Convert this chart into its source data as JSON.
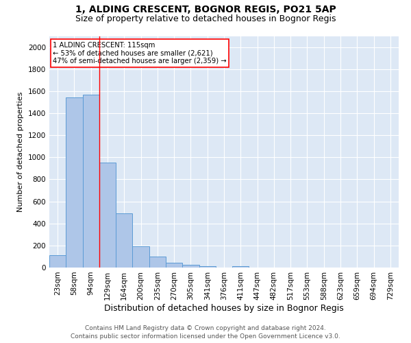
{
  "title": "1, ALDING CRESCENT, BOGNOR REGIS, PO21 5AP",
  "subtitle": "Size of property relative to detached houses in Bognor Regis",
  "xlabel": "Distribution of detached houses by size in Bognor Regis",
  "ylabel": "Number of detached properties",
  "categories": [
    "23sqm",
    "58sqm",
    "94sqm",
    "129sqm",
    "164sqm",
    "200sqm",
    "235sqm",
    "270sqm",
    "305sqm",
    "341sqm",
    "376sqm",
    "411sqm",
    "447sqm",
    "482sqm",
    "517sqm",
    "553sqm",
    "588sqm",
    "623sqm",
    "659sqm",
    "694sqm",
    "729sqm"
  ],
  "values": [
    110,
    1540,
    1570,
    950,
    490,
    190,
    100,
    45,
    25,
    15,
    0,
    15,
    0,
    0,
    0,
    0,
    0,
    0,
    0,
    0,
    0
  ],
  "bar_color": "#aec6e8",
  "bar_edge_color": "#5b9bd5",
  "red_line_x": 2.5,
  "annotation_text": "1 ALDING CRESCENT: 115sqm\n← 53% of detached houses are smaller (2,621)\n47% of semi-detached houses are larger (2,359) →",
  "ylim": [
    0,
    2100
  ],
  "yticks": [
    0,
    200,
    400,
    600,
    800,
    1000,
    1200,
    1400,
    1600,
    1800,
    2000
  ],
  "background_color": "#ffffff",
  "plot_bg_color": "#dde8f5",
  "footer_line1": "Contains HM Land Registry data © Crown copyright and database right 2024.",
  "footer_line2": "Contains public sector information licensed under the Open Government Licence v3.0.",
  "title_fontsize": 10,
  "subtitle_fontsize": 9,
  "xlabel_fontsize": 9,
  "ylabel_fontsize": 8,
  "tick_fontsize": 7.5,
  "footer_fontsize": 6.5
}
